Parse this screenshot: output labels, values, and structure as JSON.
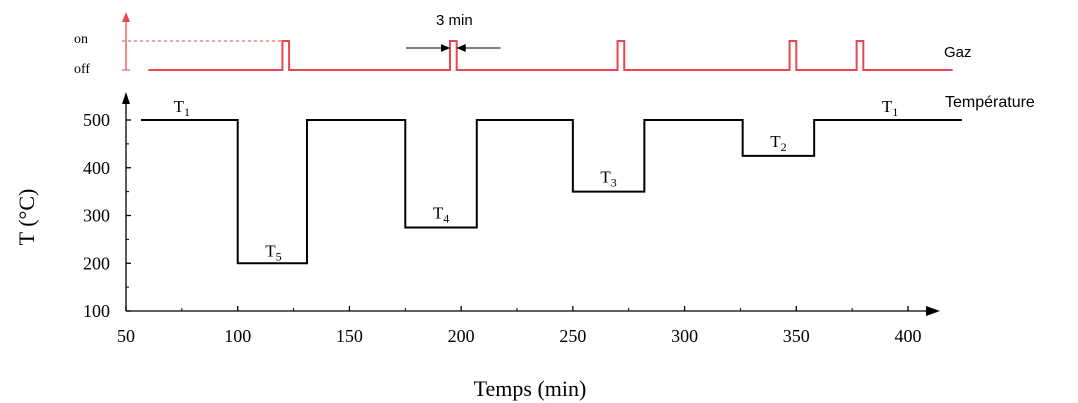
{
  "chart_data": [
    {
      "type": "line",
      "name": "gas",
      "series_label": "Gaz",
      "y_tick_labels": [
        "on",
        "off"
      ],
      "annotation": "3 min",
      "x_range": [
        60,
        420
      ],
      "pulses": [
        {
          "start": 120,
          "end": 123
        },
        {
          "start": 195,
          "end": 198
        },
        {
          "start": 270,
          "end": 273
        },
        {
          "start": 347,
          "end": 350
        },
        {
          "start": 377,
          "end": 380
        }
      ],
      "color": "#e8474f"
    },
    {
      "type": "line",
      "name": "temperature",
      "series_label": "Température",
      "xlabel": "Temps (min)",
      "ylabel": "T (°C)",
      "xlim": [
        50,
        420
      ],
      "ylim": [
        100,
        500
      ],
      "x_ticks": [
        50,
        100,
        150,
        200,
        250,
        300,
        350,
        400
      ],
      "y_ticks": [
        100,
        200,
        300,
        400,
        500
      ],
      "points": [
        [
          50,
          500
        ],
        [
          100,
          500
        ],
        [
          100,
          200
        ],
        [
          131,
          200
        ],
        [
          131,
          500
        ],
        [
          175,
          500
        ],
        [
          175,
          275
        ],
        [
          207,
          275
        ],
        [
          207,
          500
        ],
        [
          250,
          500
        ],
        [
          250,
          350
        ],
        [
          282,
          350
        ],
        [
          282,
          500
        ],
        [
          326,
          500
        ],
        [
          326,
          425
        ],
        [
          358,
          425
        ],
        [
          358,
          500
        ],
        [
          425,
          500
        ]
      ],
      "level_labels": [
        {
          "base": "T",
          "sub": "1",
          "x": 75,
          "y": 500
        },
        {
          "base": "T",
          "sub": "5",
          "x": 116,
          "y": 200
        },
        {
          "base": "T",
          "sub": "4",
          "x": 191,
          "y": 275
        },
        {
          "base": "T",
          "sub": "3",
          "x": 266,
          "y": 350
        },
        {
          "base": "T",
          "sub": "2",
          "x": 342,
          "y": 425
        },
        {
          "base": "T",
          "sub": "1",
          "x": 392,
          "y": 500
        }
      ],
      "color": "#000000"
    }
  ]
}
